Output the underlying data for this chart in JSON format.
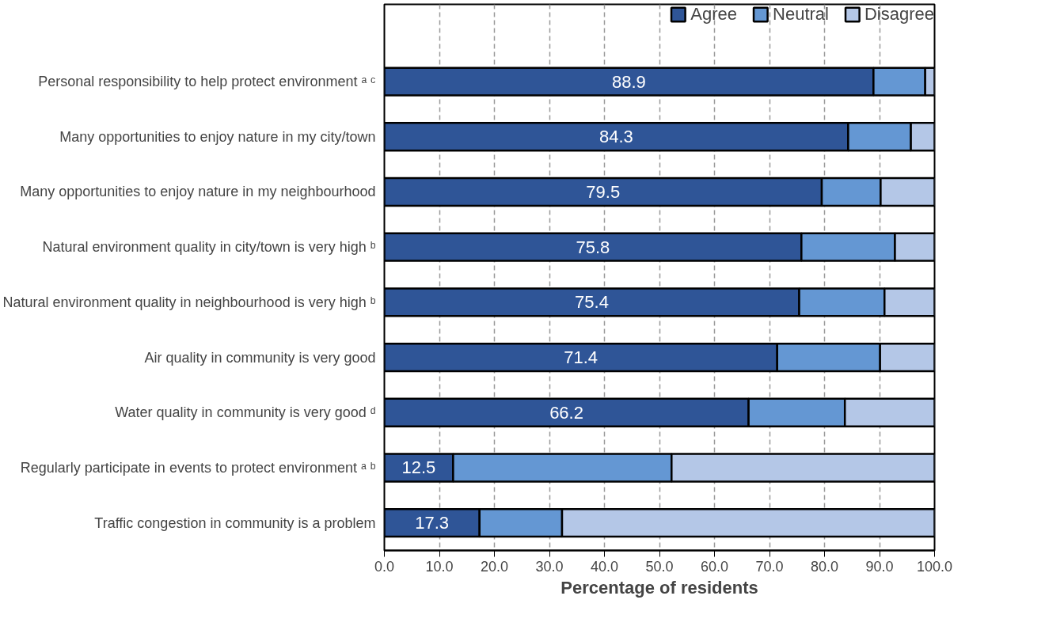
{
  "chart_data": {
    "type": "bar",
    "orientation": "horizontal",
    "stacked": true,
    "xlabel": "Percentage of residents",
    "categories": [
      "Personal responsibility to help protect environment ᵃ ᶜ",
      "Many opportunities to enjoy nature in my city/town",
      "Many opportunities to enjoy nature in my neighbourhood",
      "Natural environment quality in city/town is very high ᵇ",
      "Natural environment quality in neighbourhood is very high ᵇ",
      "Air quality in community is very good",
      "Water quality in community is very good ᵈ",
      "Regularly participate in events to protect environment ᵃ ᵇ",
      "Traffic congestion in community is a problem"
    ],
    "series": [
      {
        "name": "Agree",
        "color": "#2f5597",
        "values": [
          88.9,
          84.3,
          79.5,
          75.8,
          75.4,
          71.4,
          66.2,
          12.5,
          17.3
        ],
        "value_labels": [
          "88.9",
          "84.3",
          "79.5",
          "75.8",
          "75.4",
          "71.4",
          "66.2",
          "12.5",
          "17.3"
        ]
      },
      {
        "name": "Neutral",
        "color": "#6497d3",
        "values": [
          9.4,
          11.4,
          10.7,
          17.0,
          15.5,
          18.7,
          17.5,
          39.7,
          15.0
        ]
      },
      {
        "name": "Disagree",
        "color": "#b4c7e7",
        "values": [
          1.7,
          4.3,
          9.8,
          7.2,
          9.1,
          9.9,
          16.3,
          47.8,
          67.7
        ]
      }
    ],
    "xlim": [
      0,
      100
    ],
    "xticks": [
      {
        "value": 0,
        "label": "0.0"
      },
      {
        "value": 10,
        "label": "10.0"
      },
      {
        "value": 20,
        "label": "20.0"
      },
      {
        "value": 30,
        "label": "30.0"
      },
      {
        "value": 40,
        "label": "40.0"
      },
      {
        "value": 50,
        "label": "50.0"
      },
      {
        "value": 60,
        "label": "60.0"
      },
      {
        "value": 70,
        "label": "70.0"
      },
      {
        "value": 80,
        "label": "80.0"
      },
      {
        "value": 90,
        "label": "90.0"
      },
      {
        "value": 100,
        "label": "100.0"
      }
    ],
    "grid": "x",
    "legend": "top"
  }
}
